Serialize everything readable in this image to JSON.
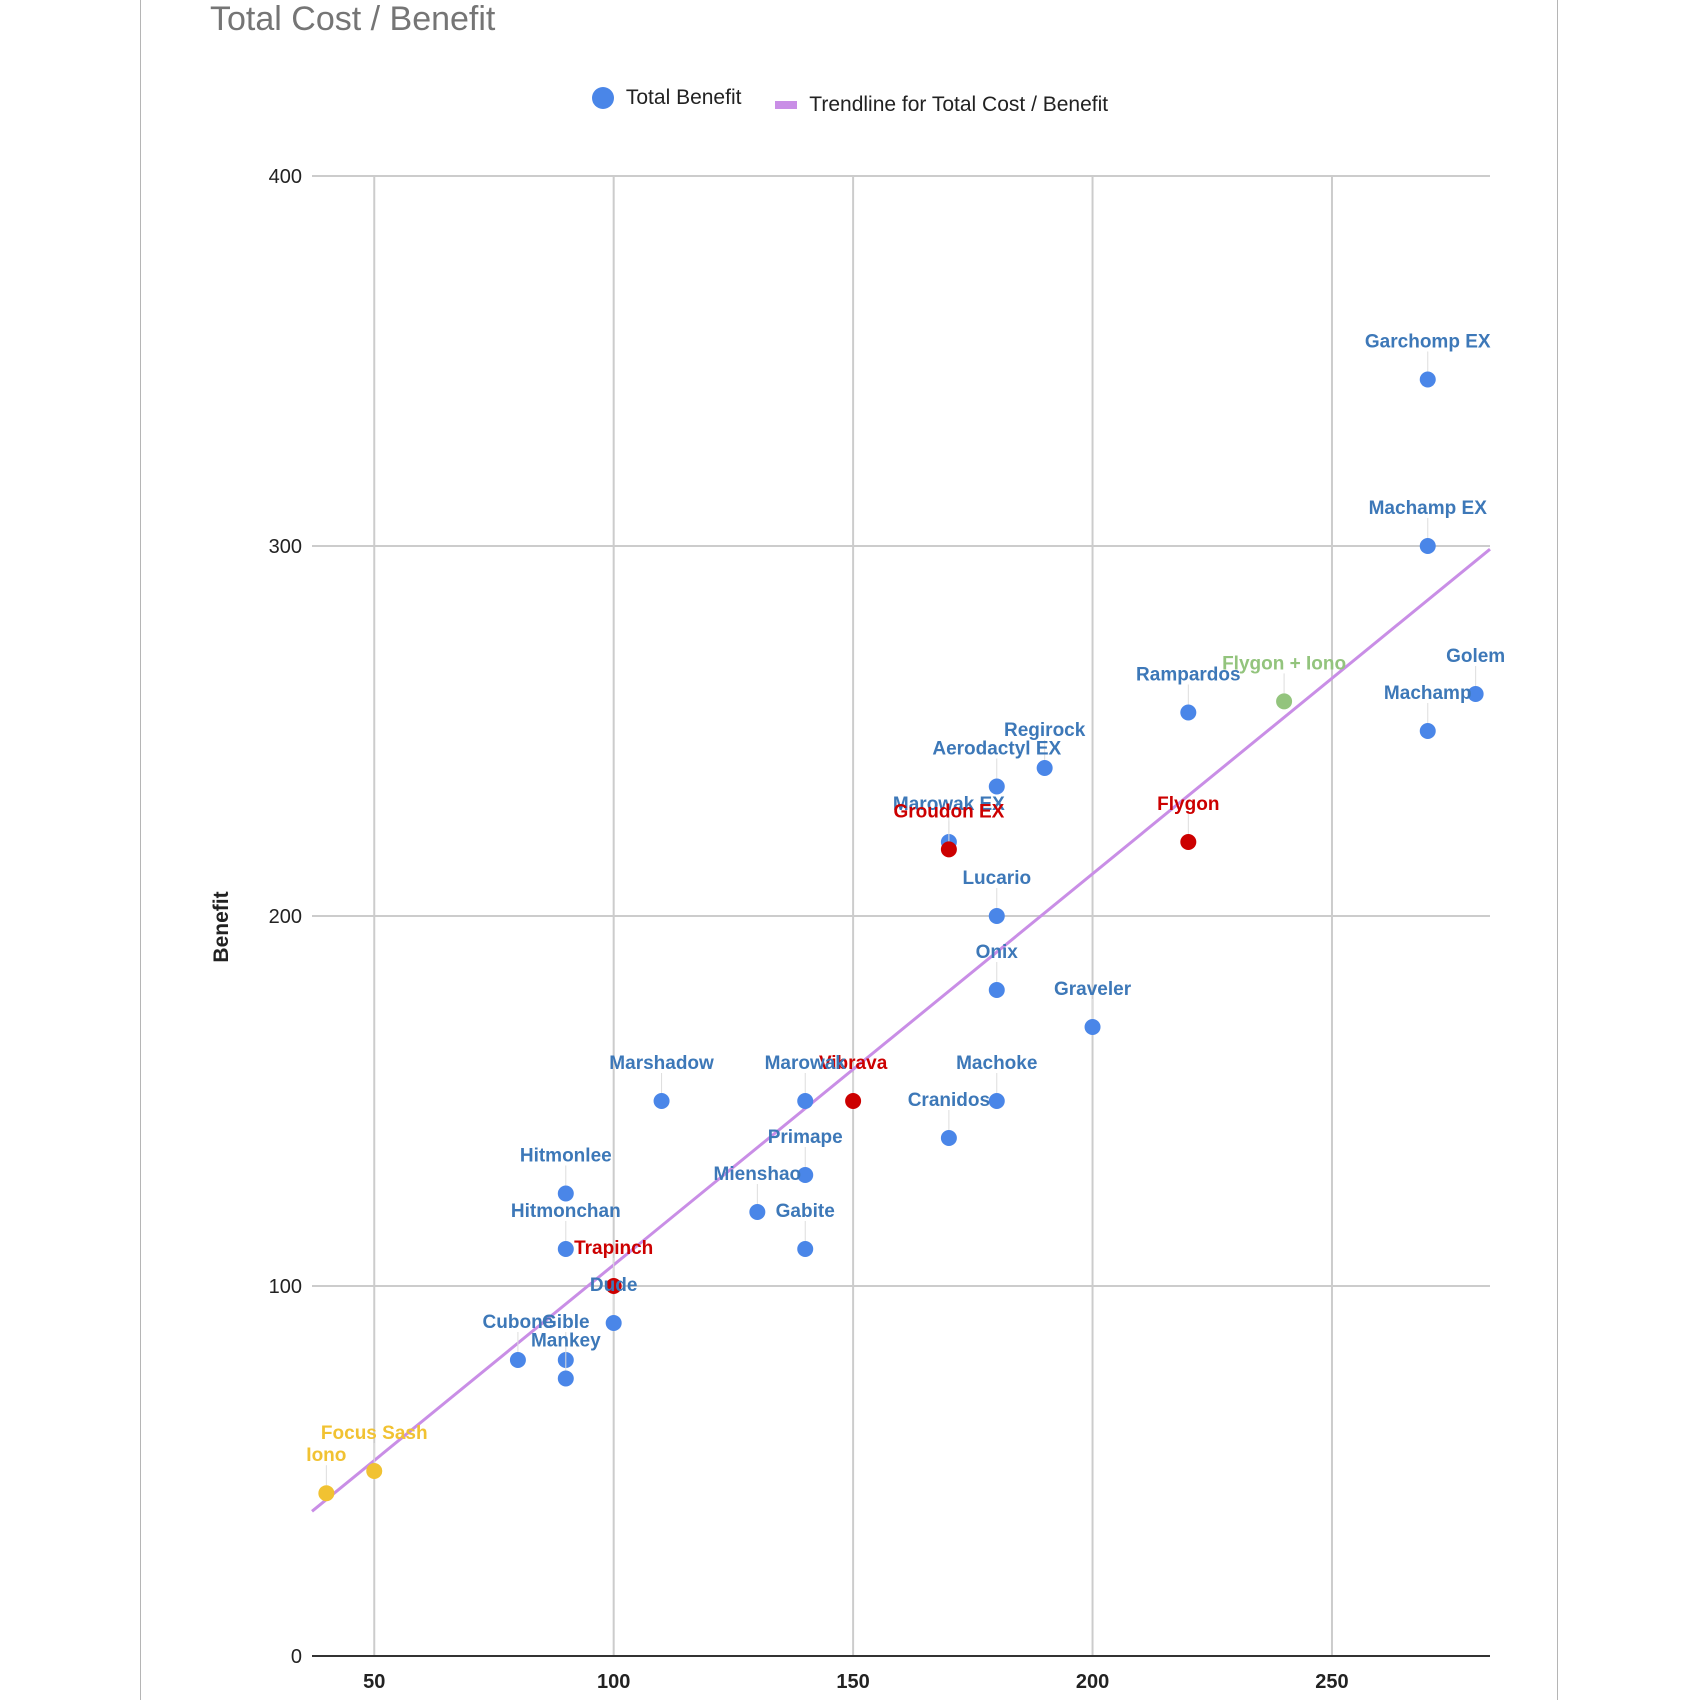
{
  "chart_data": {
    "type": "scatter",
    "title": "Total Cost / Benefit",
    "xlabel": "",
    "ylabel": "Benefit",
    "xlim": [
      37,
      283
    ],
    "ylim": [
      0,
      400
    ],
    "x_ticks": [
      "50",
      "100",
      "150",
      "200",
      "250"
    ],
    "y_ticks": [
      "0",
      "100",
      "200",
      "300",
      "400"
    ],
    "grid": true,
    "legend_position": "top",
    "colors": {
      "blue": "#4a86e8",
      "blue_label": "#3d78b8",
      "red": "#cc0000",
      "yellow": "#f1c232",
      "green": "#93c47d",
      "trend": "#c98ee6"
    },
    "legend": [
      {
        "label": "Total Benefit",
        "kind": "marker",
        "color": "#4a86e8"
      },
      {
        "label": "Trendline for Total Cost / Benefit",
        "kind": "line",
        "color": "#c98ee6"
      }
    ],
    "trendline": {
      "slope": 1.057,
      "intercept": 0
    },
    "series": [
      {
        "name": "Total Benefit",
        "points": [
          {
            "label": "Garchomp EX",
            "x": 270,
            "y": 345,
            "color": "blue"
          },
          {
            "label": "Machamp EX",
            "x": 270,
            "y": 300,
            "color": "blue"
          },
          {
            "label": "Golem",
            "x": 280,
            "y": 260,
            "color": "blue"
          },
          {
            "label": "Machamp",
            "x": 270,
            "y": 250,
            "color": "blue"
          },
          {
            "label": "Rampardos",
            "x": 220,
            "y": 255,
            "color": "blue"
          },
          {
            "label": "Flygon + Iono",
            "x": 240,
            "y": 258,
            "color": "green"
          },
          {
            "label": "Regirock",
            "x": 190,
            "y": 240,
            "color": "blue"
          },
          {
            "label": "Aerodactyl EX",
            "x": 180,
            "y": 235,
            "color": "blue"
          },
          {
            "label": "Marowak EX",
            "x": 170,
            "y": 220,
            "color": "blue"
          },
          {
            "label": "Groudon EX",
            "x": 170,
            "y": 218,
            "color": "red"
          },
          {
            "label": "Flygon",
            "x": 220,
            "y": 220,
            "color": "red"
          },
          {
            "label": "Lucario",
            "x": 180,
            "y": 200,
            "color": "blue"
          },
          {
            "label": "Onix",
            "x": 180,
            "y": 180,
            "color": "blue"
          },
          {
            "label": "Graveler",
            "x": 200,
            "y": 170,
            "color": "blue"
          },
          {
            "label": "Marshadow",
            "x": 110,
            "y": 150,
            "color": "blue"
          },
          {
            "label": "Vibrava",
            "x": 150,
            "y": 150,
            "color": "red"
          },
          {
            "label": "Marowak",
            "x": 140,
            "y": 150,
            "color": "blue"
          },
          {
            "label": "Machoke",
            "x": 180,
            "y": 150,
            "color": "blue"
          },
          {
            "label": "Cranidos",
            "x": 170,
            "y": 140,
            "color": "blue"
          },
          {
            "label": "Primape",
            "x": 140,
            "y": 130,
            "color": "blue"
          },
          {
            "label": "Mienshao",
            "x": 130,
            "y": 120,
            "color": "blue"
          },
          {
            "label": "Gabite",
            "x": 140,
            "y": 110,
            "color": "blue"
          },
          {
            "label": "Hitmonlee",
            "x": 90,
            "y": 125,
            "color": "blue"
          },
          {
            "label": "Hitmonchan",
            "x": 90,
            "y": 110,
            "color": "blue"
          },
          {
            "label": "Trapinch",
            "x": 100,
            "y": 100,
            "color": "red"
          },
          {
            "label": "Dude",
            "x": 100,
            "y": 90,
            "color": "blue"
          },
          {
            "label": "Cubone",
            "x": 80,
            "y": 80,
            "color": "blue"
          },
          {
            "label": "Gible",
            "x": 90,
            "y": 80,
            "color": "blue"
          },
          {
            "label": "Mankey",
            "x": 90,
            "y": 75,
            "color": "blue"
          },
          {
            "label": "Focus Sash",
            "x": 50,
            "y": 50,
            "color": "yellow"
          },
          {
            "label": "Iono",
            "x": 40,
            "y": 44,
            "color": "yellow"
          }
        ]
      }
    ]
  }
}
